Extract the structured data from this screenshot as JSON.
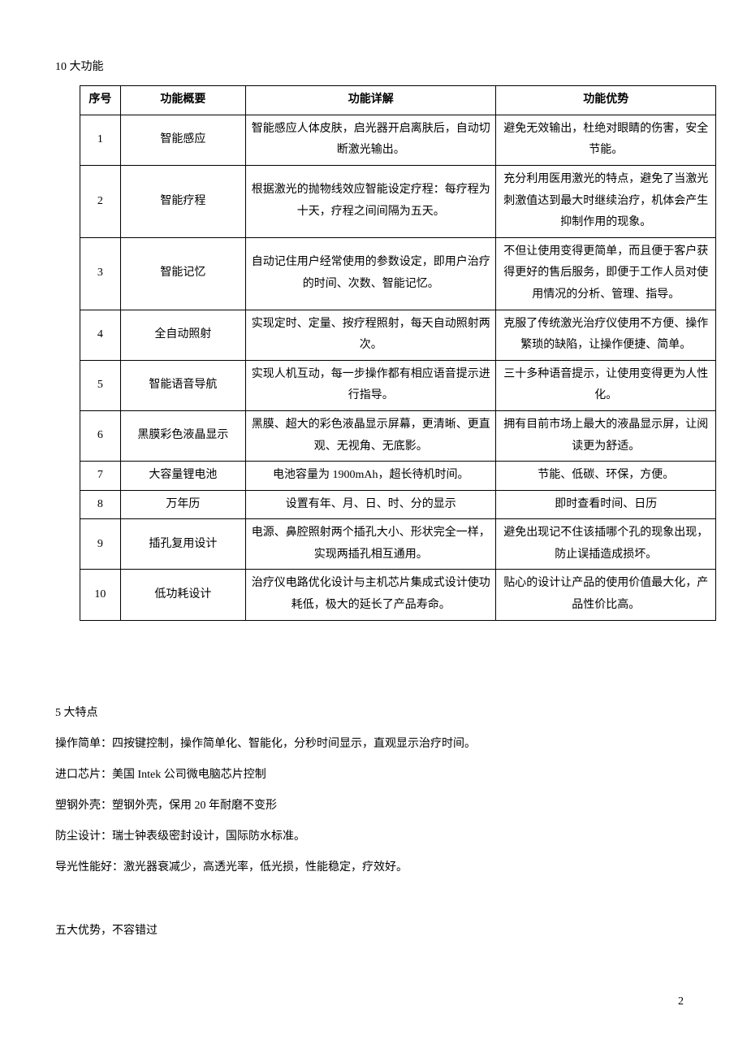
{
  "section1": {
    "title": "10 大功能",
    "columns": [
      "序号",
      "功能概要",
      "功能详解",
      "功能优势"
    ],
    "rows": [
      {
        "num": "1",
        "summary": "智能感应",
        "detail": "智能感应人体皮肤，启光器开启离肤后，自动切断激光输出。",
        "advantage": "避免无效输出，杜绝对眼睛的伤害，安全节能。"
      },
      {
        "num": "2",
        "summary": "智能疗程",
        "detail": "根据激光的抛物线效应智能设定疗程：每疗程为十天，疗程之间间隔为五天。",
        "advantage": "充分利用医用激光的特点，避免了当激光刺激值达到最大时继续治疗，机体会产生抑制作用的现象。"
      },
      {
        "num": "3",
        "summary": "智能记忆",
        "detail": "自动记住用户经常使用的参数设定，即用户治疗的时间、次数、智能记忆。",
        "advantage": "不但让使用变得更简单，而且便于客户获得更好的售后服务，即便于工作人员对使用情况的分析、管理、指导。"
      },
      {
        "num": "4",
        "summary": "全自动照射",
        "detail": "实现定时、定量、按疗程照射，每天自动照射两次。",
        "advantage": "克服了传统激光治疗仪使用不方便、操作繁琐的缺陷，让操作便捷、简单。"
      },
      {
        "num": "5",
        "summary": "智能语音导航",
        "detail": "实现人机互动，每一步操作都有相应语音提示进行指导。",
        "advantage": "三十多种语音提示，让使用变得更为人性化。"
      },
      {
        "num": "6",
        "summary": "黑膜彩色液晶显示",
        "detail": "黑膜、超大的彩色液晶显示屏幕，更清晰、更直观、无视角、无底影。",
        "advantage": "拥有目前市场上最大的液晶显示屏，让阅读更为舒适。"
      },
      {
        "num": "7",
        "summary": "大容量锂电池",
        "detail": "电池容量为 1900mAh，超长待机时间。",
        "advantage": "节能、低碳、环保，方便。"
      },
      {
        "num": "8",
        "summary": "万年历",
        "detail": "设置有年、月、日、时、分的显示",
        "advantage": "即时查看时间、日历"
      },
      {
        "num": "9",
        "summary": "插孔复用设计",
        "detail": "电源、鼻腔照射两个插孔大小、形状完全一样，实现两插孔相互通用。",
        "advantage": "避免出现记不住该插哪个孔的现象出现，防止误插造成损坏。"
      },
      {
        "num": "10",
        "summary": "低功耗设计",
        "detail": "治疗仪电路优化设计与主机芯片集成式设计使功耗低，极大的延长了产品寿命。",
        "advantage": "贴心的设计让产品的使用价值最大化，产品性价比高。"
      }
    ]
  },
  "section2": {
    "title": "5 大特点",
    "lines": [
      "操作简单：四按键控制，操作简单化、智能化，分秒时间显示，直观显示治疗时间。",
      "进口芯片：美国 Intek 公司微电脑芯片控制",
      "塑钢外壳：塑钢外壳，保用 20 年耐磨不变形",
      "防尘设计：瑞士钟表级密封设计，国际防水标准。",
      "导光性能好：激光器衰减少，高透光率，低光损，性能稳定，疗效好。"
    ]
  },
  "section3": {
    "title": "五大优势，不容错过"
  },
  "page_number": "2"
}
